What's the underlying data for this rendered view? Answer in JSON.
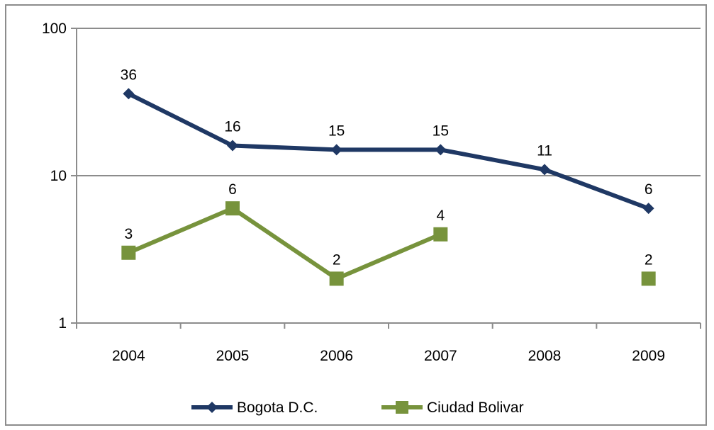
{
  "chart_data": {
    "type": "line",
    "title": "",
    "xlabel": "",
    "ylabel": "",
    "y_scale": "log",
    "ylim": [
      1,
      100
    ],
    "y_ticks": [
      1,
      10,
      100
    ],
    "y_tick_labels": [
      "1",
      "10",
      "100"
    ],
    "categories": [
      "2004",
      "2005",
      "2006",
      "2007",
      "2008",
      "2009"
    ],
    "grid": "horizontal major gridlines",
    "legend_position": "bottom",
    "series": [
      {
        "name": "Bogota D.C.",
        "color": "#1f3864",
        "marker": "diamond",
        "values": [
          36,
          16,
          15,
          15,
          11,
          6
        ],
        "labels": [
          "36",
          "16",
          "15",
          "15",
          "11",
          "6"
        ]
      },
      {
        "name": "Ciudad Bolivar",
        "color": "#77933c",
        "marker": "square",
        "values": [
          3,
          6,
          2,
          4,
          null,
          2
        ],
        "labels": [
          "3",
          "6",
          "2",
          "4",
          "",
          "2"
        ]
      }
    ]
  }
}
